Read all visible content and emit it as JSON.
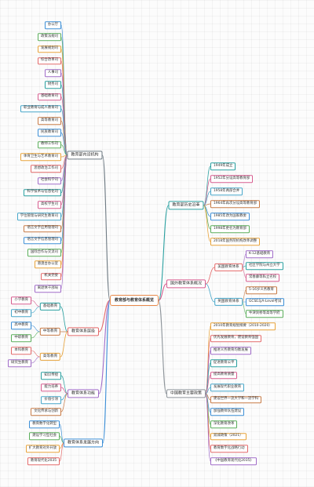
{
  "title": "教育部与教育体系概览",
  "branches": {
    "internal": {
      "label": "教育部内设机构",
      "items": [
        "办公厅",
        "政策法规司",
        "发展规划司",
        "综合改革司",
        "人事司",
        "财务司",
        "基础教育司",
        "职业教育与成人教育司",
        "高等教育司",
        "民族教育司",
        "教师工作司",
        "体育卫生与艺术教育司",
        "思想政治工作司",
        "社会科学司",
        "科学技术与信息化司",
        "高校学生司",
        "学位管理与研究生教育司",
        "语言文字应用管理司",
        "语言文字信息管理司",
        "国际合作与交流司",
        "港澳台办公室",
        "机关党委",
        "离退休干部局"
      ]
    },
    "history": {
      "label": "教育部历史沿革",
      "items": [
        "1949年成立",
        "1952年分设高等教育部",
        "1958年两部合并",
        "1964年再次分设高等教育部",
        "1985年改为国家教委",
        "1998年更名为教育部",
        "2018年国务院机构改革调整"
      ]
    },
    "foreign": {
      "label": "国外教育体系概况",
      "groups": [
        {
          "label": "美国教育体系",
          "items": [
            "K-12基础教育",
            "社区学院与州立大学",
            "常春藤等私立名校"
          ]
        },
        {
          "label": "英国教育体系",
          "items": [
            "5-16岁义务教育",
            "GCSE与A-Level考试",
            "牛津剑桥等高等学府"
          ]
        }
      ]
    },
    "policy": {
      "label": "中国教育主要政策",
      "items": [
        "2010年教育规划纲要（2010-2020）",
        "优先发展教育，建设教育强国",
        "推进义务教育均衡发展",
        "促进教育公平",
        "提高教育质量",
        "发展现代职业教育",
        "建设世界一流大学和一流学科",
        "加强教师队伍建设",
        "深化教育改革",
        "双减政策（2021）",
        "教育数字化战略行动",
        "《中国教育现代化2035》"
      ]
    },
    "levels": {
      "label": "教育体系层级",
      "groups": [
        {
          "label": "基础教育",
          "items": [
            "小学教育",
            "初中教育"
          ]
        },
        {
          "label": "中等教育",
          "items": [
            "高中教育",
            "中职教育"
          ]
        },
        {
          "label": "高等教育",
          "items": [
            "本科教育",
            "研究生教育"
          ]
        }
      ]
    },
    "functions": {
      "label": "教育体系功能",
      "items": [
        "知识传授",
        "能力培养",
        "价值引领",
        "文化传承与创新"
      ]
    },
    "direction": {
      "label": "教育体系发展方向",
      "items": [
        "教育数字化转型",
        "建设学习型社会",
        "扩大教育对外开放",
        "教育现代化2035"
      ]
    }
  },
  "colors": {
    "center": "#e8894a",
    "internal": "#6f7b84",
    "history": "#2aa0a0",
    "foreign": "#d75d8f",
    "policy": "#8d949a",
    "levels": "#e46a6a",
    "functions": "#a06cc8",
    "direction": "#3d8fd6",
    "palette": [
      "#3d8fd6",
      "#5aae5a",
      "#e8a33a",
      "#e46a6a",
      "#a06cc8",
      "#2aa0a0",
      "#d75d8f",
      "#46a6c9",
      "#c77a45"
    ]
  }
}
